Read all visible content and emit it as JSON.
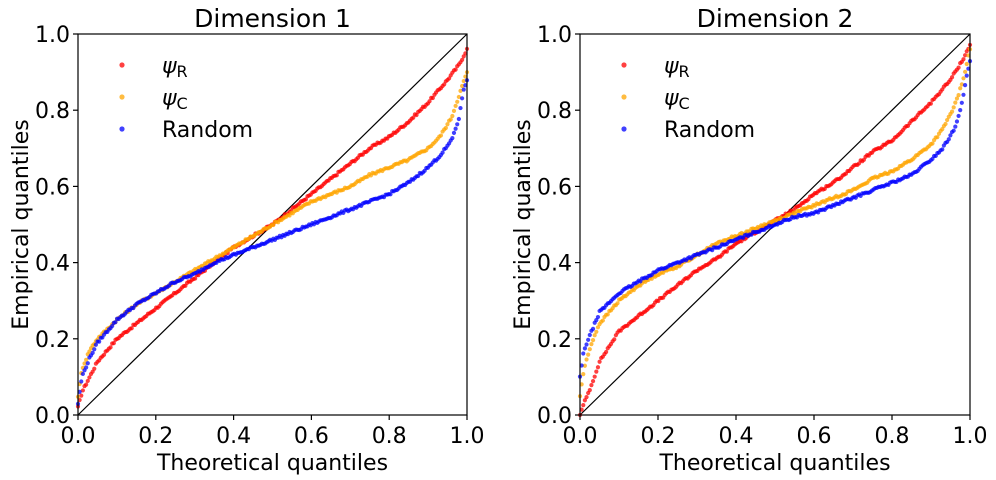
{
  "chart_data": [
    {
      "type": "scatter",
      "title": "Dimension 1",
      "xlabel": "Theoretical quantiles",
      "ylabel": "Empirical quantiles",
      "xlim": [
        0,
        1
      ],
      "ylim": [
        0,
        1
      ],
      "xticks": [
        "0.0",
        "0.2",
        "0.4",
        "0.6",
        "0.8",
        "1.0"
      ],
      "yticks": [
        "0.0",
        "0.2",
        "0.4",
        "0.6",
        "0.8",
        "1.0"
      ],
      "grid": false,
      "legend_position": "top-left",
      "reference_line": {
        "x": [
          0,
          1
        ],
        "y": [
          0,
          1
        ],
        "color": "#000000"
      },
      "series": [
        {
          "name": "ψR",
          "label_main": "ψ",
          "label_sub": "R",
          "color": "#ff0000",
          "x": [
            0.0,
            0.01,
            0.03,
            0.05,
            0.1,
            0.15,
            0.2,
            0.25,
            0.3,
            0.35,
            0.4,
            0.45,
            0.5,
            0.55,
            0.6,
            0.65,
            0.7,
            0.75,
            0.8,
            0.85,
            0.9,
            0.95,
            0.98,
            1.0
          ],
          "y": [
            0.02,
            0.06,
            0.1,
            0.14,
            0.2,
            0.24,
            0.28,
            0.32,
            0.36,
            0.4,
            0.44,
            0.47,
            0.5,
            0.54,
            0.58,
            0.62,
            0.66,
            0.7,
            0.73,
            0.77,
            0.82,
            0.88,
            0.92,
            0.96
          ]
        },
        {
          "name": "ψC",
          "label_main": "ψ",
          "label_sub": "C",
          "color": "#ffa500",
          "x": [
            0.0,
            0.01,
            0.03,
            0.05,
            0.1,
            0.15,
            0.2,
            0.25,
            0.3,
            0.35,
            0.4,
            0.45,
            0.5,
            0.55,
            0.6,
            0.65,
            0.7,
            0.75,
            0.8,
            0.85,
            0.9,
            0.93,
            0.96,
            0.98,
            1.0
          ],
          "y": [
            0.05,
            0.12,
            0.17,
            0.2,
            0.25,
            0.29,
            0.32,
            0.35,
            0.38,
            0.41,
            0.44,
            0.47,
            0.5,
            0.53,
            0.56,
            0.58,
            0.6,
            0.63,
            0.65,
            0.67,
            0.7,
            0.73,
            0.78,
            0.84,
            0.9
          ]
        },
        {
          "name": "Random",
          "label_main": "Random",
          "label_sub": "",
          "color": "#0000ff",
          "x": [
            0.0,
            0.01,
            0.03,
            0.05,
            0.1,
            0.15,
            0.2,
            0.25,
            0.3,
            0.35,
            0.4,
            0.45,
            0.5,
            0.55,
            0.6,
            0.65,
            0.7,
            0.75,
            0.8,
            0.85,
            0.9,
            0.93,
            0.96,
            0.98,
            0.99,
            1.0
          ],
          "y": [
            0.03,
            0.1,
            0.15,
            0.19,
            0.25,
            0.29,
            0.32,
            0.35,
            0.37,
            0.4,
            0.42,
            0.44,
            0.46,
            0.48,
            0.5,
            0.52,
            0.54,
            0.56,
            0.58,
            0.61,
            0.65,
            0.68,
            0.72,
            0.78,
            0.85,
            0.88
          ]
        }
      ]
    },
    {
      "type": "scatter",
      "title": "Dimension 2",
      "xlabel": "Theoretical quantiles",
      "ylabel": "Empirical quantiles",
      "xlim": [
        0,
        1
      ],
      "ylim": [
        0,
        1
      ],
      "xticks": [
        "0.0",
        "0.2",
        "0.4",
        "0.6",
        "0.8",
        "1.0"
      ],
      "yticks": [
        "0.0",
        "0.2",
        "0.4",
        "0.6",
        "0.8",
        "1.0"
      ],
      "grid": false,
      "legend_position": "top-left",
      "reference_line": {
        "x": [
          0,
          1
        ],
        "y": [
          0,
          1
        ],
        "color": "#000000"
      },
      "series": [
        {
          "name": "ψR",
          "label_main": "ψ",
          "label_sub": "R",
          "color": "#ff0000",
          "x": [
            0.0,
            0.01,
            0.03,
            0.05,
            0.1,
            0.15,
            0.2,
            0.25,
            0.3,
            0.35,
            0.4,
            0.45,
            0.5,
            0.55,
            0.6,
            0.65,
            0.7,
            0.75,
            0.8,
            0.85,
            0.9,
            0.95,
            0.98,
            1.0
          ],
          "y": [
            0.0,
            0.03,
            0.08,
            0.14,
            0.22,
            0.26,
            0.3,
            0.34,
            0.38,
            0.41,
            0.45,
            0.48,
            0.51,
            0.54,
            0.58,
            0.61,
            0.65,
            0.69,
            0.72,
            0.77,
            0.82,
            0.88,
            0.93,
            0.97
          ]
        },
        {
          "name": "ψC",
          "label_main": "ψ",
          "label_sub": "C",
          "color": "#ffa500",
          "x": [
            0.0,
            0.01,
            0.03,
            0.05,
            0.1,
            0.15,
            0.2,
            0.25,
            0.3,
            0.35,
            0.4,
            0.45,
            0.5,
            0.55,
            0.6,
            0.65,
            0.7,
            0.75,
            0.8,
            0.85,
            0.9,
            0.93,
            0.96,
            0.98,
            1.0
          ],
          "y": [
            0.05,
            0.12,
            0.19,
            0.24,
            0.3,
            0.34,
            0.37,
            0.39,
            0.42,
            0.45,
            0.47,
            0.49,
            0.51,
            0.53,
            0.55,
            0.57,
            0.59,
            0.62,
            0.64,
            0.67,
            0.71,
            0.75,
            0.81,
            0.87,
            0.96
          ]
        },
        {
          "name": "Random",
          "label_main": "Random",
          "label_sub": "",
          "color": "#0000ff",
          "x": [
            0.0,
            0.01,
            0.03,
            0.05,
            0.1,
            0.15,
            0.2,
            0.25,
            0.3,
            0.35,
            0.4,
            0.45,
            0.5,
            0.55,
            0.6,
            0.65,
            0.7,
            0.75,
            0.8,
            0.85,
            0.9,
            0.93,
            0.96,
            0.98,
            0.99,
            1.0
          ],
          "y": [
            0.1,
            0.17,
            0.22,
            0.27,
            0.32,
            0.35,
            0.38,
            0.4,
            0.42,
            0.44,
            0.46,
            0.48,
            0.5,
            0.52,
            0.53,
            0.55,
            0.57,
            0.59,
            0.61,
            0.63,
            0.67,
            0.7,
            0.75,
            0.82,
            0.88,
            0.93
          ]
        }
      ]
    }
  ]
}
